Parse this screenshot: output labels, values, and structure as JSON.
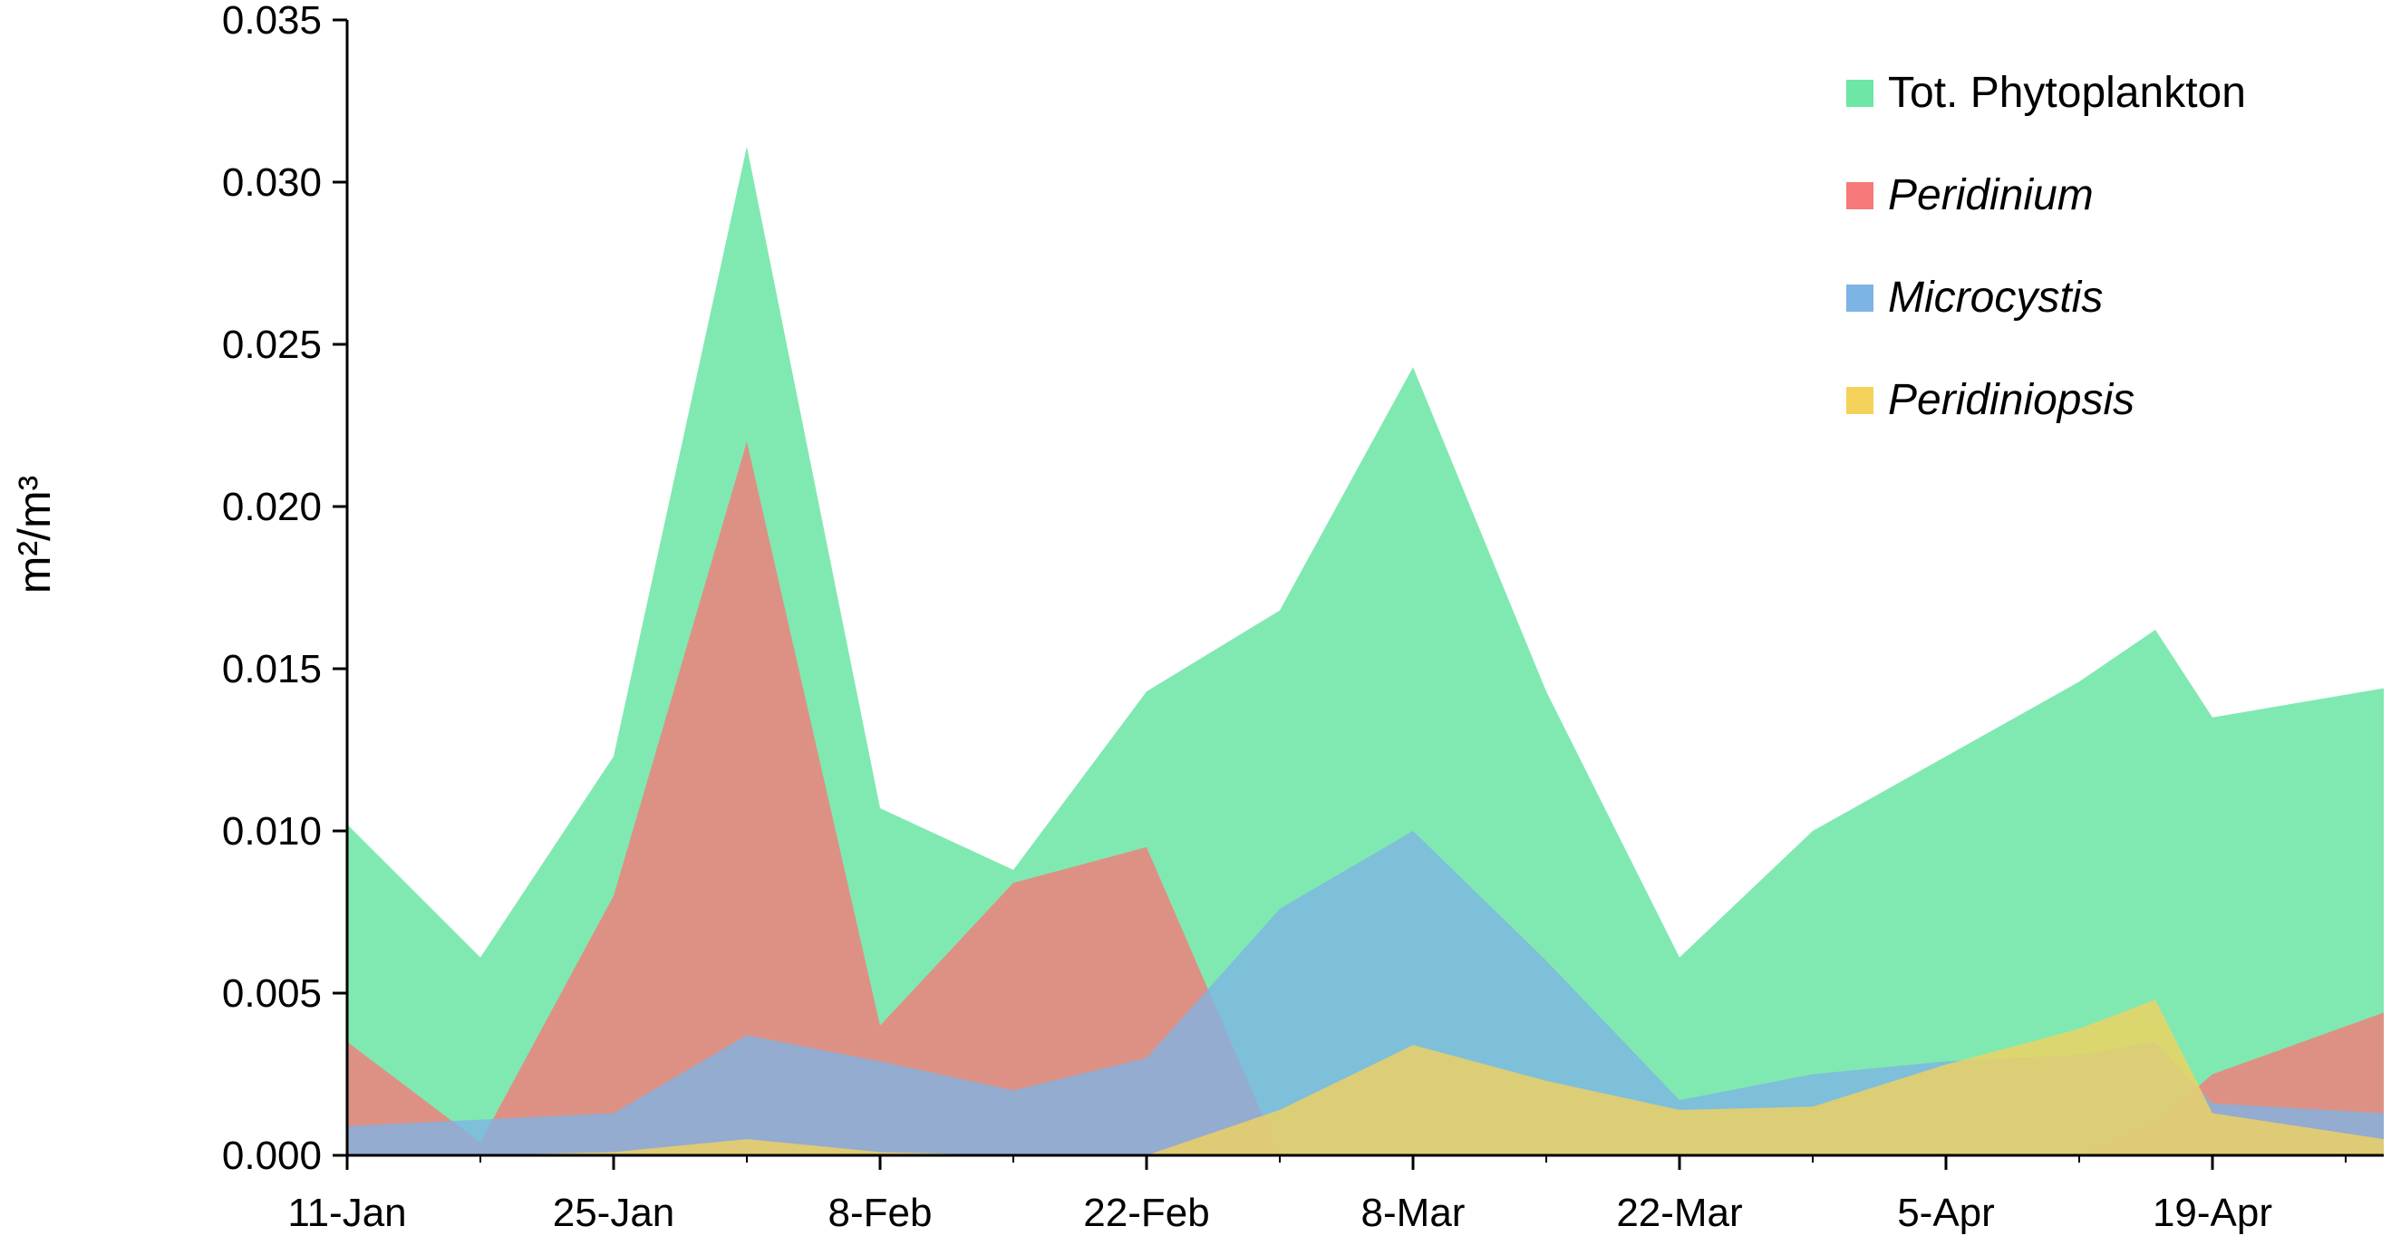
{
  "chart_data": {
    "type": "area",
    "ylabel": "m²/m³",
    "ylim": [
      0,
      0.035
    ],
    "y_ticks": [
      "0.000",
      "0.005",
      "0.010",
      "0.015",
      "0.020",
      "0.025",
      "0.030",
      "0.035"
    ],
    "x_range": [
      "2000-01-11",
      "2000-04-27"
    ],
    "x_ticks": [
      {
        "date": "2000-01-11",
        "label": "11-Jan"
      },
      {
        "date": "2000-01-25",
        "label": "25-Jan"
      },
      {
        "date": "2000-02-08",
        "label": "8-Feb"
      },
      {
        "date": "2000-02-22",
        "label": "22-Feb"
      },
      {
        "date": "2000-03-07",
        "label": "8-Mar"
      },
      {
        "date": "2000-03-21",
        "label": "22-Mar"
      },
      {
        "date": "2000-04-04",
        "label": "5-Apr"
      },
      {
        "date": "2000-04-18",
        "label": "19-Apr"
      }
    ],
    "legend_position": "top-right",
    "grid": false,
    "series": [
      {
        "name": "Tot. Phytoplankton",
        "color": "#6EE6A6",
        "italic": false,
        "x": [
          "2000-01-11",
          "2000-01-18",
          "2000-01-25",
          "2000-02-01",
          "2000-02-08",
          "2000-02-15",
          "2000-02-22",
          "2000-02-29",
          "2000-03-07",
          "2000-03-14",
          "2000-03-21",
          "2000-03-28",
          "2000-04-04",
          "2000-04-11",
          "2000-04-15",
          "2000-04-18",
          "2000-04-27"
        ],
        "values": [
          0.0102,
          0.0061,
          0.0123,
          0.0311,
          0.0107,
          0.0088,
          0.0143,
          0.0168,
          0.0243,
          0.0143,
          0.0061,
          0.01,
          0.0123,
          0.0146,
          0.0162,
          0.0135,
          0.0144
        ]
      },
      {
        "name": "Peridinium",
        "color": "#F77979",
        "italic": true,
        "x": [
          "2000-01-11",
          "2000-01-18",
          "2000-01-25",
          "2000-02-01",
          "2000-02-08",
          "2000-02-15",
          "2000-02-22",
          "2000-02-29",
          "2000-03-07",
          "2000-03-14",
          "2000-03-21",
          "2000-03-28",
          "2000-04-04",
          "2000-04-11",
          "2000-04-15",
          "2000-04-18",
          "2000-04-27"
        ],
        "values": [
          0.0035,
          0.0004,
          0.008,
          0.022,
          0.004,
          0.0084,
          0.0095,
          0.0,
          0.0,
          0.0,
          0.0,
          0.0,
          0.0,
          0.0,
          0.001,
          0.0025,
          0.0044
        ]
      },
      {
        "name": "Microcystis",
        "color": "#7EB3E6",
        "italic": true,
        "x": [
          "2000-01-11",
          "2000-01-18",
          "2000-01-25",
          "2000-02-01",
          "2000-02-08",
          "2000-02-15",
          "2000-02-22",
          "2000-02-29",
          "2000-03-07",
          "2000-03-14",
          "2000-03-21",
          "2000-03-28",
          "2000-04-04",
          "2000-04-11",
          "2000-04-15",
          "2000-04-18",
          "2000-04-27"
        ],
        "values": [
          0.0009,
          0.0011,
          0.0013,
          0.0037,
          0.0029,
          0.002,
          0.003,
          0.0076,
          0.01,
          0.006,
          0.0017,
          0.0025,
          0.0029,
          0.0031,
          0.0035,
          0.0016,
          0.0013
        ]
      },
      {
        "name": "Peridiniopsis",
        "color": "#F5D25B",
        "italic": true,
        "x": [
          "2000-01-11",
          "2000-01-18",
          "2000-01-25",
          "2000-02-01",
          "2000-02-08",
          "2000-02-15",
          "2000-02-22",
          "2000-02-29",
          "2000-03-07",
          "2000-03-14",
          "2000-03-21",
          "2000-03-28",
          "2000-04-04",
          "2000-04-11",
          "2000-04-15",
          "2000-04-18",
          "2000-04-27"
        ],
        "values": [
          0.0,
          0.0,
          0.0001,
          0.0005,
          0.0001,
          0.0,
          0.0,
          0.0014,
          0.0034,
          0.0023,
          0.0014,
          0.0015,
          0.0028,
          0.0039,
          0.0048,
          0.0013,
          0.0005
        ]
      }
    ]
  }
}
